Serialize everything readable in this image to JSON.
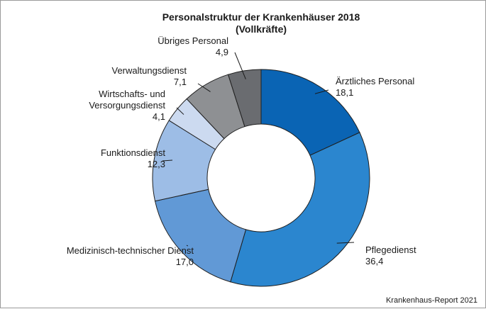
{
  "chart_data": {
    "type": "donut",
    "title": "Personalstruktur der Krankenhäuser 2018",
    "subtitle": "(Vollkräfte)",
    "unit": "%",
    "slices": [
      {
        "name": "Ärztliches Personal",
        "value": 18.1,
        "value_label": "18,1",
        "color": "#0a64b4"
      },
      {
        "name": "Pflegedienst",
        "value": 36.4,
        "value_label": "36,4",
        "color": "#2b86cf"
      },
      {
        "name": "Medizinisch-technischer Dienst",
        "value": 17.0,
        "value_label": "17,0",
        "color": "#6199d6"
      },
      {
        "name": "Funktionsdienst",
        "value": 12.3,
        "value_label": "12,3",
        "color": "#9dbde6"
      },
      {
        "name": "Wirtschafts- und Versorgungsdienst",
        "value": 4.1,
        "value_label": "4,1",
        "color": "#ccdaf0",
        "name_lines": [
          "Wirtschafts- und",
          "Versorgungsdienst"
        ]
      },
      {
        "name": "Verwaltungsdienst",
        "value": 7.1,
        "value_label": "7,1",
        "color": "#8e9093"
      },
      {
        "name": "Übriges Personal",
        "value": 4.9,
        "value_label": "4,9",
        "color": "#6a6c70"
      }
    ]
  },
  "footer": {
    "source": "Krankenhaus-Report 2021"
  }
}
